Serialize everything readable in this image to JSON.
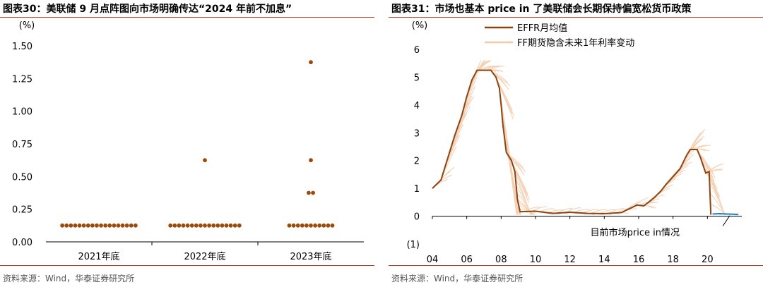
{
  "left_panel": {
    "title": "图表30：美联储 9 月点阵图向市场明确传达“2024 年前不加息”",
    "source": "资料来源：Wind，华泰证券研究所"
  },
  "right_panel": {
    "title": "图表31：市场也基本 price in 了美联储会长期保持偏宽松货币政策",
    "source": "资料来源：Wind，华泰证券研究所"
  },
  "colors": {
    "dot": "#9c4a0a",
    "effr": "#8b4513",
    "futures": "#f3c9a8",
    "recent": "#2e86c1",
    "rule": "#c0392b"
  },
  "chart_data": [
    {
      "type": "scatter",
      "title": "",
      "ylabel": "(%)",
      "ylim": [
        0,
        1.5
      ],
      "yticks": [
        "0.00",
        "0.25",
        "0.50",
        "0.75",
        "1.00",
        "1.25",
        "1.50"
      ],
      "categories": [
        "2021年底",
        "2022年底",
        "2023年底"
      ],
      "series": [
        {
          "category": "2021年底",
          "values": [
            0.125,
            0.125,
            0.125,
            0.125,
            0.125,
            0.125,
            0.125,
            0.125,
            0.125,
            0.125,
            0.125,
            0.125,
            0.125,
            0.125,
            0.125,
            0.125,
            0.125,
            0.125
          ]
        },
        {
          "category": "2022年底",
          "values": [
            0.125,
            0.125,
            0.125,
            0.125,
            0.125,
            0.125,
            0.125,
            0.125,
            0.125,
            0.125,
            0.125,
            0.125,
            0.125,
            0.125,
            0.125,
            0.125,
            0.125,
            0.625
          ]
        },
        {
          "category": "2023年底",
          "values": [
            0.125,
            0.125,
            0.125,
            0.125,
            0.125,
            0.125,
            0.125,
            0.125,
            0.125,
            0.125,
            0.125,
            0.375,
            0.375,
            0.625,
            1.375
          ]
        }
      ],
      "grid": false
    },
    {
      "type": "line",
      "title": "",
      "ylabel": "(%)",
      "ylim": [
        -1,
        6
      ],
      "xlim": [
        2004,
        2022
      ],
      "yticks": [
        "(1)",
        "0",
        "1",
        "2",
        "3",
        "4",
        "5",
        "6"
      ],
      "xticks": [
        "04",
        "06",
        "08",
        "10",
        "12",
        "14",
        "16",
        "18",
        "20"
      ],
      "legend": [
        "EFFR月均值",
        "FF期货隐含未来1年利率变动"
      ],
      "legend_position": "top",
      "annotation": "目前市场price in情况",
      "series": [
        {
          "name": "EFFR月均值",
          "x": [
            2004.0,
            2004.5,
            2004.9,
            2005.3,
            2005.7,
            2006.0,
            2006.3,
            2006.6,
            2007.0,
            2007.4,
            2007.7,
            2007.9,
            2008.0,
            2008.1,
            2008.3,
            2008.6,
            2008.8,
            2008.95,
            2009.1,
            2010,
            2011,
            2012,
            2013,
            2014,
            2015,
            2015.9,
            2016.3,
            2016.9,
            2017.3,
            2017.6,
            2018.0,
            2018.4,
            2018.8,
            2019.0,
            2019.4,
            2019.6,
            2019.9,
            2020.1,
            2020.2
          ],
          "y": [
            1.0,
            1.3,
            2.1,
            2.9,
            3.6,
            4.3,
            4.9,
            5.25,
            5.25,
            5.25,
            5.0,
            4.6,
            4.0,
            3.3,
            2.3,
            2.0,
            1.6,
            0.6,
            0.16,
            0.18,
            0.1,
            0.14,
            0.1,
            0.09,
            0.13,
            0.4,
            0.37,
            0.66,
            0.91,
            1.15,
            1.42,
            1.7,
            2.2,
            2.4,
            2.4,
            2.1,
            1.55,
            1.6,
            0.05
          ]
        },
        {
          "name": "FF期货隐含未来1年利率变动",
          "x": [
            2020.3,
            2020.7,
            2021.1,
            2021.5,
            2021.8
          ],
          "y": [
            0.08,
            0.09,
            0.08,
            0.07,
            0.06
          ]
        }
      ]
    }
  ]
}
